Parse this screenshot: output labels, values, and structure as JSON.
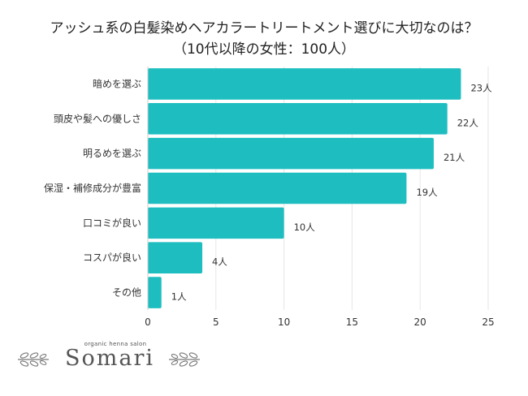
{
  "chart_data": {
    "type": "bar",
    "orientation": "horizontal",
    "title_line1": "アッシュ系の白髪染めヘアカラートリートメント選びに大切なのは？",
    "title_line2": "（10代以降の女性：100人）",
    "categories": [
      "暗めを選ぶ",
      "頭皮や髪への優しさ",
      "明るめを選ぶ",
      "保湿・補修成分が豊富",
      "口コミが良い",
      "コスパが良い",
      "その他"
    ],
    "values": [
      23,
      22,
      21,
      19,
      10,
      4,
      1
    ],
    "value_labels": [
      "23人",
      "22人",
      "21人",
      "19人",
      "10人",
      "4人",
      "1人"
    ],
    "xlim": [
      0,
      25
    ],
    "xticks": [
      0,
      5,
      10,
      15,
      20,
      25
    ],
    "bar_color": "#1ebec0",
    "grid": true,
    "legend": "none"
  },
  "logo": {
    "tagline": "organic henna salon",
    "wordmark": "Somari"
  }
}
